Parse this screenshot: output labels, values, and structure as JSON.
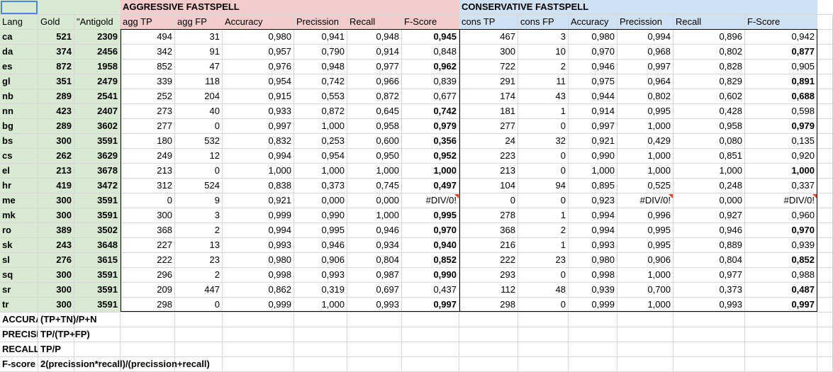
{
  "sections": {
    "aggressive": "AGGRESSIVE FASTSPELL",
    "conservative": "CONSERVATIVE FASTSPELL"
  },
  "headers": [
    "Lang",
    "Gold",
    "\"Antigold",
    "agg TP",
    "agg FP",
    "Accuracy",
    "Precission",
    "Recall",
    "F-Score",
    "cons TP",
    "cons FP",
    "Accuracy",
    "Precission",
    "Recall",
    "F-Score"
  ],
  "rows": [
    {
      "cells": [
        "ca",
        "521",
        "2309",
        "494",
        "31",
        "0,980",
        "0,941",
        "0,948",
        "0,945",
        "467",
        "3",
        "0,980",
        "0,994",
        "0,896",
        "0,942"
      ],
      "bold_agg": true,
      "bold_cons": false
    },
    {
      "cells": [
        "da",
        "374",
        "2456",
        "342",
        "91",
        "0,957",
        "0,790",
        "0,914",
        "0,848",
        "300",
        "10",
        "0,970",
        "0,968",
        "0,802",
        "0,877"
      ],
      "bold_agg": false,
      "bold_cons": true
    },
    {
      "cells": [
        "es",
        "872",
        "1958",
        "852",
        "47",
        "0,976",
        "0,948",
        "0,977",
        "0,962",
        "722",
        "2",
        "0,946",
        "0,997",
        "0,828",
        "0,905"
      ],
      "bold_agg": true,
      "bold_cons": false
    },
    {
      "cells": [
        "gl",
        "351",
        "2479",
        "339",
        "118",
        "0,954",
        "0,742",
        "0,966",
        "0,839",
        "291",
        "11",
        "0,975",
        "0,964",
        "0,829",
        "0,891"
      ],
      "bold_agg": false,
      "bold_cons": true
    },
    {
      "cells": [
        "nb",
        "289",
        "2541",
        "252",
        "204",
        "0,915",
        "0,553",
        "0,872",
        "0,677",
        "174",
        "43",
        "0,944",
        "0,802",
        "0,602",
        "0,688"
      ],
      "bold_agg": false,
      "bold_cons": true
    },
    {
      "cells": [
        "nn",
        "423",
        "2407",
        "273",
        "40",
        "0,933",
        "0,872",
        "0,645",
        "0,742",
        "181",
        "1",
        "0,914",
        "0,995",
        "0,428",
        "0,598"
      ],
      "bold_agg": true,
      "bold_cons": false
    },
    {
      "cells": [
        "bg",
        "289",
        "3602",
        "277",
        "0",
        "0,997",
        "1,000",
        "0,958",
        "0,979",
        "277",
        "0",
        "0,997",
        "1,000",
        "0,958",
        "0,979"
      ],
      "bold_agg": true,
      "bold_cons": true
    },
    {
      "cells": [
        "bs",
        "300",
        "3591",
        "180",
        "532",
        "0,832",
        "0,253",
        "0,600",
        "0,356",
        "24",
        "32",
        "0,921",
        "0,429",
        "0,080",
        "0,135"
      ],
      "bold_agg": true,
      "bold_cons": false
    },
    {
      "cells": [
        "cs",
        "262",
        "3629",
        "249",
        "12",
        "0,994",
        "0,954",
        "0,950",
        "0,952",
        "223",
        "0",
        "0,990",
        "1,000",
        "0,851",
        "0,920"
      ],
      "bold_agg": true,
      "bold_cons": false
    },
    {
      "cells": [
        "el",
        "213",
        "3678",
        "213",
        "0",
        "1,000",
        "1,000",
        "1,000",
        "1,000",
        "213",
        "0",
        "1,000",
        "1,000",
        "1,000",
        "1,000"
      ],
      "bold_agg": true,
      "bold_cons": true
    },
    {
      "cells": [
        "hr",
        "419",
        "3472",
        "312",
        "524",
        "0,838",
        "0,373",
        "0,745",
        "0,497",
        "104",
        "94",
        "0,895",
        "0,525",
        "0,248",
        "0,337"
      ],
      "bold_agg": true,
      "bold_cons": false
    },
    {
      "cells": [
        "me",
        "300",
        "3591",
        "0",
        "9",
        "0,921",
        "0,000",
        "0,000",
        "#DIV/0!",
        "0",
        "0",
        "0,923",
        "#DIV/0!",
        "0,000",
        "#DIV/0!"
      ],
      "bold_agg": false,
      "bold_cons": false,
      "flags": [
        8,
        12,
        14
      ]
    },
    {
      "cells": [
        "mk",
        "300",
        "3591",
        "300",
        "3",
        "0,999",
        "0,990",
        "1,000",
        "0,995",
        "278",
        "1",
        "0,994",
        "0,996",
        "0,927",
        "0,960"
      ],
      "bold_agg": true,
      "bold_cons": false
    },
    {
      "cells": [
        "ro",
        "389",
        "3502",
        "368",
        "2",
        "0,994",
        "0,995",
        "0,946",
        "0,970",
        "368",
        "2",
        "0,994",
        "0,995",
        "0,946",
        "0,970"
      ],
      "bold_agg": true,
      "bold_cons": true
    },
    {
      "cells": [
        "sk",
        "243",
        "3648",
        "227",
        "13",
        "0,993",
        "0,946",
        "0,934",
        "0,940",
        "216",
        "1",
        "0,993",
        "0,995",
        "0,889",
        "0,939"
      ],
      "bold_agg": true,
      "bold_cons": false
    },
    {
      "cells": [
        "sl",
        "276",
        "3615",
        "222",
        "23",
        "0,980",
        "0,906",
        "0,804",
        "0,852",
        "222",
        "23",
        "0,980",
        "0,906",
        "0,804",
        "0,852"
      ],
      "bold_agg": true,
      "bold_cons": true
    },
    {
      "cells": [
        "sq",
        "300",
        "3591",
        "296",
        "2",
        "0,998",
        "0,993",
        "0,987",
        "0,990",
        "293",
        "0",
        "0,998",
        "1,000",
        "0,977",
        "0,988"
      ],
      "bold_agg": true,
      "bold_cons": false
    },
    {
      "cells": [
        "sr",
        "300",
        "3591",
        "209",
        "447",
        "0,862",
        "0,319",
        "0,697",
        "0,437",
        "112",
        "48",
        "0,939",
        "0,700",
        "0,373",
        "0,487"
      ],
      "bold_agg": false,
      "bold_cons": true
    },
    {
      "cells": [
        "tr",
        "300",
        "3591",
        "298",
        "0",
        "0,999",
        "1,000",
        "0,993",
        "0,997",
        "298",
        "0",
        "0,999",
        "1,000",
        "0,993",
        "0,997"
      ],
      "bold_agg": true,
      "bold_cons": true
    }
  ],
  "notes": [
    {
      "label": "ACCURACY",
      "formula": "(TP+TN)/P+N"
    },
    {
      "label": "PRECISION",
      "formula": "TP/(TP+FP)"
    },
    {
      "label": "RECALL",
      "formula": "TP/P"
    },
    {
      "label": "F-score",
      "formula": "2(precission*recall)/(precission+recall)"
    }
  ],
  "colors": {
    "green": "#d9ead3",
    "red": "#f4cccc",
    "blue": "#cfe2f3",
    "selection": "#4a86e8"
  }
}
